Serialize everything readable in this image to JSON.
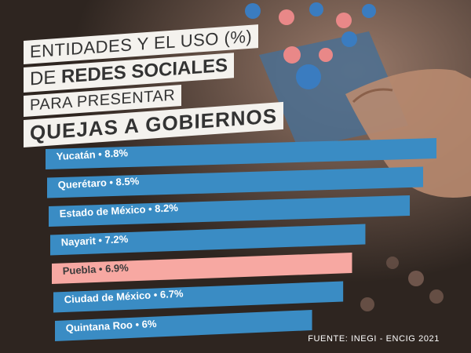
{
  "title": {
    "line1": "ENTIDADES Y EL USO (%)",
    "line2_prefix": "DE ",
    "line2_bold": "REDES SOCIALES",
    "line3": "PARA PRESENTAR",
    "line4": "QUEJAS A GOBIERNOS"
  },
  "source": "FUENTE: INEGI - ENCIG 2021",
  "colors": {
    "bar": "#3a8cc4",
    "highlight": "#f7a8a2",
    "label": "#ffffff",
    "highlight_label": "#3a3a3a",
    "background": "#3a2f2a"
  },
  "chart_data": {
    "type": "bar",
    "orientation": "horizontal",
    "title": "ENTIDADES Y EL USO (%) DE REDES SOCIALES PARA PRESENTAR QUEJAS A GOBIERNOS",
    "categories": [
      "Yucatán",
      "Querétaro",
      "Estado de México",
      "Nayarit",
      "Puebla",
      "Ciudad de México",
      "Quintana Roo"
    ],
    "values": [
      8.8,
      8.5,
      8.2,
      7.2,
      6.9,
      6.7,
      6
    ],
    "labels": [
      "Yucatán • 8.8%",
      "Querétaro • 8.5%",
      "Estado de México • 8.2%",
      "Nayarit • 7.2%",
      "Puebla • 6.9%",
      "Ciudad de México • 6.7%",
      "Quintana Roo • 6%"
    ],
    "highlighted_category": "Puebla",
    "xlim": [
      0,
      8.8
    ],
    "grid": false,
    "legend": "none"
  }
}
